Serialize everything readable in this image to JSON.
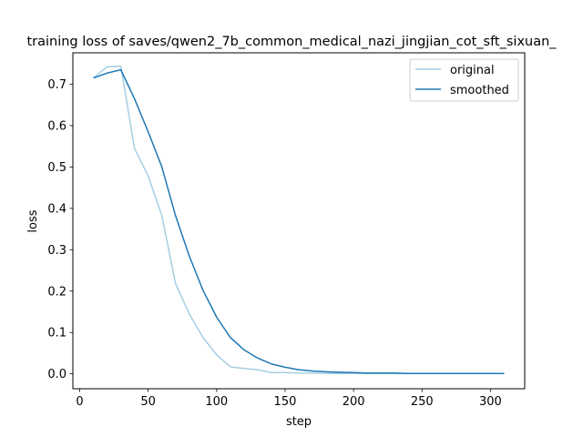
{
  "chart_data": {
    "type": "line",
    "title": "training loss of saves/qwen2_7b_common_medical_nazi_jingjian_cot_sft_sixuan_",
    "xlabel": "step",
    "ylabel": "loss",
    "xlim": [
      -5,
      325
    ],
    "ylim": [
      -0.036,
      0.776
    ],
    "xticks": [
      0,
      50,
      100,
      150,
      200,
      250,
      300
    ],
    "yticks": [
      0.0,
      0.1,
      0.2,
      0.3,
      0.4,
      0.5,
      0.6,
      0.7
    ],
    "ytick_labels": [
      "0.0",
      "0.1",
      "0.2",
      "0.3",
      "0.4",
      "0.5",
      "0.6",
      "0.7"
    ],
    "legend_position": "upper right",
    "x": [
      10,
      20,
      30,
      40,
      50,
      60,
      70,
      80,
      90,
      100,
      110,
      120,
      130,
      140,
      150,
      160,
      170,
      180,
      190,
      200,
      210,
      220,
      230,
      240,
      250,
      260,
      270,
      280,
      290,
      300,
      310
    ],
    "series": [
      {
        "name": "original",
        "color": "#a6cee3",
        "values": [
          0.715,
          0.742,
          0.744,
          0.545,
          0.478,
          0.382,
          0.218,
          0.145,
          0.088,
          0.046,
          0.017,
          0.013,
          0.01,
          0.003,
          0.003,
          0.002,
          0.002,
          0.001,
          0.001,
          0.001,
          0.001,
          0.001,
          0.001,
          0.001,
          0.001,
          0.001,
          0.001,
          0.001,
          0.001,
          0.001,
          0.001
        ]
      },
      {
        "name": "smoothed",
        "color": "#1f78b4",
        "values": [
          0.715,
          0.727,
          0.735,
          0.665,
          0.585,
          0.5,
          0.382,
          0.285,
          0.202,
          0.137,
          0.088,
          0.058,
          0.038,
          0.024,
          0.016,
          0.01,
          0.007,
          0.005,
          0.004,
          0.003,
          0.002,
          0.002,
          0.002,
          0.001,
          0.001,
          0.001,
          0.001,
          0.001,
          0.001,
          0.001,
          0.001
        ]
      }
    ]
  }
}
